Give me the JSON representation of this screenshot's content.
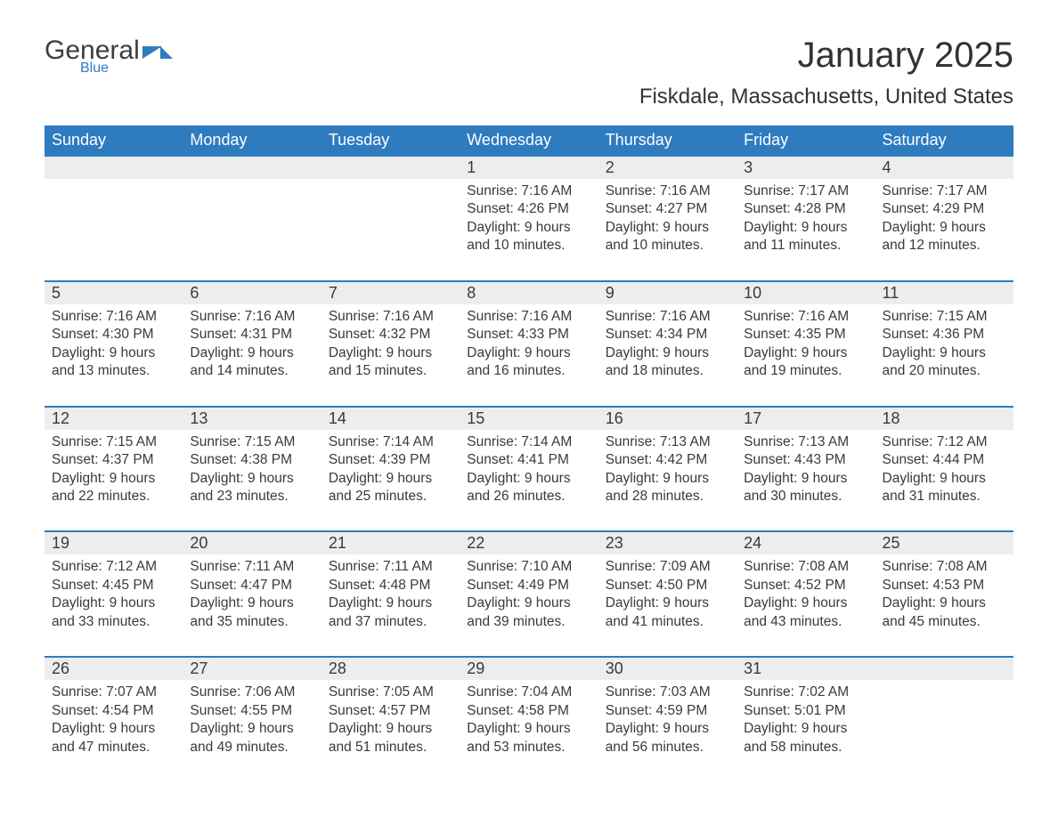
{
  "logo": {
    "general": "General",
    "blue": "Blue"
  },
  "title": "January 2025",
  "location": "Fiskdale, Massachusetts, United States",
  "colors": {
    "header_bg": "#2f7bbf",
    "header_text": "#ffffff",
    "daynum_bg": "#ededed",
    "border": "#2f7bbf",
    "text": "#3a3a3a",
    "page_bg": "#ffffff"
  },
  "weekdays": [
    "Sunday",
    "Monday",
    "Tuesday",
    "Wednesday",
    "Thursday",
    "Friday",
    "Saturday"
  ],
  "weeks": [
    [
      null,
      null,
      null,
      {
        "d": "1",
        "sunrise": "7:16 AM",
        "sunset": "4:26 PM",
        "daylight": "9 hours and 10 minutes."
      },
      {
        "d": "2",
        "sunrise": "7:16 AM",
        "sunset": "4:27 PM",
        "daylight": "9 hours and 10 minutes."
      },
      {
        "d": "3",
        "sunrise": "7:17 AM",
        "sunset": "4:28 PM",
        "daylight": "9 hours and 11 minutes."
      },
      {
        "d": "4",
        "sunrise": "7:17 AM",
        "sunset": "4:29 PM",
        "daylight": "9 hours and 12 minutes."
      }
    ],
    [
      {
        "d": "5",
        "sunrise": "7:16 AM",
        "sunset": "4:30 PM",
        "daylight": "9 hours and 13 minutes."
      },
      {
        "d": "6",
        "sunrise": "7:16 AM",
        "sunset": "4:31 PM",
        "daylight": "9 hours and 14 minutes."
      },
      {
        "d": "7",
        "sunrise": "7:16 AM",
        "sunset": "4:32 PM",
        "daylight": "9 hours and 15 minutes."
      },
      {
        "d": "8",
        "sunrise": "7:16 AM",
        "sunset": "4:33 PM",
        "daylight": "9 hours and 16 minutes."
      },
      {
        "d": "9",
        "sunrise": "7:16 AM",
        "sunset": "4:34 PM",
        "daylight": "9 hours and 18 minutes."
      },
      {
        "d": "10",
        "sunrise": "7:16 AM",
        "sunset": "4:35 PM",
        "daylight": "9 hours and 19 minutes."
      },
      {
        "d": "11",
        "sunrise": "7:15 AM",
        "sunset": "4:36 PM",
        "daylight": "9 hours and 20 minutes."
      }
    ],
    [
      {
        "d": "12",
        "sunrise": "7:15 AM",
        "sunset": "4:37 PM",
        "daylight": "9 hours and 22 minutes."
      },
      {
        "d": "13",
        "sunrise": "7:15 AM",
        "sunset": "4:38 PM",
        "daylight": "9 hours and 23 minutes."
      },
      {
        "d": "14",
        "sunrise": "7:14 AM",
        "sunset": "4:39 PM",
        "daylight": "9 hours and 25 minutes."
      },
      {
        "d": "15",
        "sunrise": "7:14 AM",
        "sunset": "4:41 PM",
        "daylight": "9 hours and 26 minutes."
      },
      {
        "d": "16",
        "sunrise": "7:13 AM",
        "sunset": "4:42 PM",
        "daylight": "9 hours and 28 minutes."
      },
      {
        "d": "17",
        "sunrise": "7:13 AM",
        "sunset": "4:43 PM",
        "daylight": "9 hours and 30 minutes."
      },
      {
        "d": "18",
        "sunrise": "7:12 AM",
        "sunset": "4:44 PM",
        "daylight": "9 hours and 31 minutes."
      }
    ],
    [
      {
        "d": "19",
        "sunrise": "7:12 AM",
        "sunset": "4:45 PM",
        "daylight": "9 hours and 33 minutes."
      },
      {
        "d": "20",
        "sunrise": "7:11 AM",
        "sunset": "4:47 PM",
        "daylight": "9 hours and 35 minutes."
      },
      {
        "d": "21",
        "sunrise": "7:11 AM",
        "sunset": "4:48 PM",
        "daylight": "9 hours and 37 minutes."
      },
      {
        "d": "22",
        "sunrise": "7:10 AM",
        "sunset": "4:49 PM",
        "daylight": "9 hours and 39 minutes."
      },
      {
        "d": "23",
        "sunrise": "7:09 AM",
        "sunset": "4:50 PM",
        "daylight": "9 hours and 41 minutes."
      },
      {
        "d": "24",
        "sunrise": "7:08 AM",
        "sunset": "4:52 PM",
        "daylight": "9 hours and 43 minutes."
      },
      {
        "d": "25",
        "sunrise": "7:08 AM",
        "sunset": "4:53 PM",
        "daylight": "9 hours and 45 minutes."
      }
    ],
    [
      {
        "d": "26",
        "sunrise": "7:07 AM",
        "sunset": "4:54 PM",
        "daylight": "9 hours and 47 minutes."
      },
      {
        "d": "27",
        "sunrise": "7:06 AM",
        "sunset": "4:55 PM",
        "daylight": "9 hours and 49 minutes."
      },
      {
        "d": "28",
        "sunrise": "7:05 AM",
        "sunset": "4:57 PM",
        "daylight": "9 hours and 51 minutes."
      },
      {
        "d": "29",
        "sunrise": "7:04 AM",
        "sunset": "4:58 PM",
        "daylight": "9 hours and 53 minutes."
      },
      {
        "d": "30",
        "sunrise": "7:03 AM",
        "sunset": "4:59 PM",
        "daylight": "9 hours and 56 minutes."
      },
      {
        "d": "31",
        "sunrise": "7:02 AM",
        "sunset": "5:01 PM",
        "daylight": "9 hours and 58 minutes."
      },
      null
    ]
  ],
  "labels": {
    "sunrise": "Sunrise: ",
    "sunset": "Sunset: ",
    "daylight": "Daylight: "
  }
}
